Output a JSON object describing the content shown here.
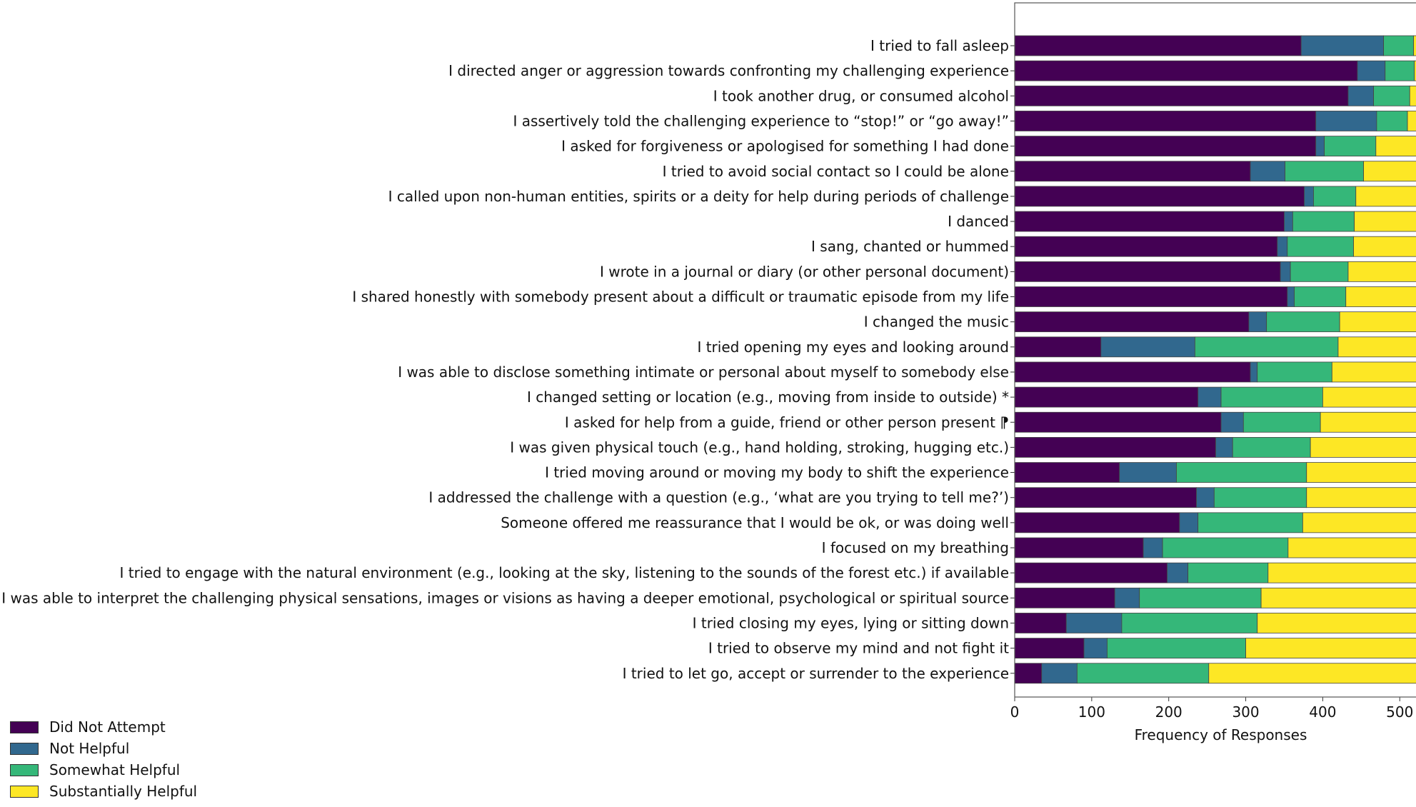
{
  "chart_data": {
    "type": "bar",
    "orientation": "horizontal",
    "stacked": true,
    "xlabel": "Frequency of Responses",
    "ylabel": "",
    "title": "",
    "xlim": [
      0,
      535
    ],
    "xticks": [
      "0",
      "100",
      "200",
      "300",
      "400",
      "500"
    ],
    "legend_position": "bottom-left",
    "grid": false,
    "categories": [
      "I tried to fall asleep",
      "I directed anger or aggression towards confronting my challenging experience",
      "I took another drug, or consumed alcohol",
      "I assertively told the challenging experience to “stop!” or “go away!”",
      "I asked for forgiveness or apologised for something I had done",
      "I tried to avoid social contact so I could be alone",
      "I called upon non-human entities, spirits or a deity for help during periods of challenge",
      "I danced",
      "I sang, chanted or hummed",
      "I wrote in a journal or diary (or other personal document)",
      "I shared honestly with somebody present about a difficult or traumatic episode from my life",
      "I changed the music",
      "I tried opening my eyes and looking around",
      "I was able to disclose something intimate or personal about myself to somebody else",
      "I changed setting or location (e.g., moving from inside to outside) *",
      "I asked for help from a guide, friend or other person present ⁋",
      "I was given physical touch (e.g., hand holding, stroking, hugging etc.)",
      "I tried moving around or moving my body to shift the experience",
      "I addressed the challenge with a question (e.g., ‘what are you trying to tell me?’)",
      "Someone offered me reassurance that I would be ok, or was doing well",
      "I focused on my breathing",
      "I tried to engage with the natural environment (e.g., looking at the sky, listening to the sounds of the forest etc.) if available",
      "I was able to interpret the challenging physical sensations, images or visions as having a deeper emotional, psychological or spiritual source",
      "I tried closing my eyes, lying or sitting down",
      "I tried to observe my mind and not fight it",
      "I tried to let go, accept or surrender to the experience"
    ],
    "series": [
      {
        "name": "Did Not Attempt",
        "color": "#440154",
        "values": [
          372,
          445,
          433,
          391,
          391,
          306,
          376,
          350,
          341,
          345,
          354,
          304,
          112,
          306,
          238,
          268,
          261,
          136,
          236,
          214,
          167,
          198,
          130,
          67,
          90,
          35
        ]
      },
      {
        "name": "Not Helpful",
        "color": "#31688e",
        "values": [
          107,
          36,
          33,
          79,
          11,
          45,
          12,
          11,
          13,
          13,
          9,
          23,
          122,
          9,
          30,
          29,
          22,
          74,
          23,
          24,
          25,
          27,
          32,
          72,
          30,
          46
        ]
      },
      {
        "name": "Somewhat Helpful",
        "color": "#35b779",
        "values": [
          39,
          38,
          47,
          40,
          67,
          102,
          55,
          80,
          86,
          75,
          67,
          95,
          186,
          97,
          132,
          100,
          101,
          169,
          120,
          136,
          163,
          104,
          158,
          176,
          180,
          171
        ]
      },
      {
        "name": "Substantially Helpful",
        "color": "#fde725",
        "values": [
          13,
          12,
          17,
          21,
          62,
          80,
          89,
          91,
          92,
          100,
          102,
          110,
          112,
          120,
          129,
          135,
          148,
          153,
          153,
          158,
          177,
          203,
          212,
          217,
          232,
          279
        ]
      }
    ]
  }
}
